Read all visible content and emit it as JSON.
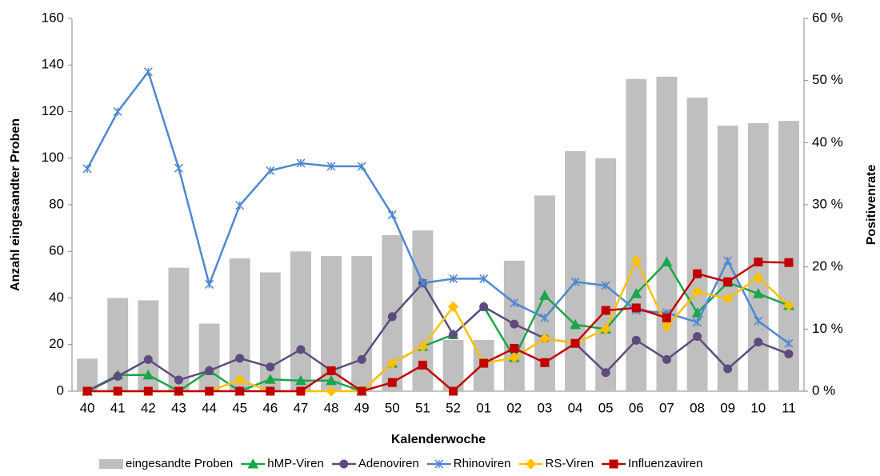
{
  "chart_data": {
    "type": "bar-line",
    "x_label": "Kalenderwoche",
    "y_label": "Anzahl eingesandter Proben",
    "y2_label": "Positivenrate",
    "categories": [
      "40",
      "41",
      "42",
      "43",
      "44",
      "45",
      "46",
      "47",
      "48",
      "49",
      "50",
      "51",
      "52",
      "01",
      "02",
      "03",
      "04",
      "05",
      "06",
      "07",
      "08",
      "09",
      "10",
      "11"
    ],
    "ylim": [
      0,
      160
    ],
    "yticks": [
      0,
      20,
      40,
      60,
      80,
      100,
      120,
      140,
      160
    ],
    "y2lim": [
      0,
      60
    ],
    "y2ticks": [
      {
        "value": 0,
        "label": "0 %"
      },
      {
        "value": 10,
        "label": "10 %"
      },
      {
        "value": 20,
        "label": "20 %"
      },
      {
        "value": 30,
        "label": "30 %"
      },
      {
        "value": 40,
        "label": "40 %"
      },
      {
        "value": 50,
        "label": "50 %"
      },
      {
        "value": 60,
        "label": "60 %"
      }
    ],
    "legend": "bottom",
    "series": [
      {
        "name": "eingesandte Proben",
        "kind": "bar",
        "axis": "y",
        "color": "#bfbfbf",
        "values": [
          14,
          40,
          39,
          53,
          29,
          57,
          51,
          60,
          58,
          58,
          67,
          69,
          22,
          22,
          56,
          84,
          103,
          100,
          134,
          135,
          126,
          114,
          115,
          116
        ]
      },
      {
        "name": "hMP-Viren",
        "kind": "line",
        "axis": "y2",
        "color": "#1aa64a",
        "marker": "triangle",
        "values": [
          0,
          2.6,
          2.6,
          0,
          3.3,
          0,
          1.9,
          1.7,
          1.7,
          0,
          4.5,
          7.2,
          9.1,
          13.6,
          5.4,
          15.4,
          10.7,
          10.0,
          15.7,
          20.8,
          12.6,
          17.5,
          15.7,
          13.8
        ]
      },
      {
        "name": "Adenoviren",
        "kind": "line",
        "axis": "y2",
        "color": "#5e4b7e",
        "marker": "circle",
        "values": [
          0,
          2.4,
          5.1,
          1.8,
          3.3,
          5.3,
          3.9,
          6.7,
          3.3,
          5.1,
          12.0,
          17.4,
          9.1,
          13.6,
          10.8,
          8.5,
          7.7,
          3.0,
          8.2,
          5.1,
          8.8,
          3.6,
          7.9,
          6.0
        ]
      },
      {
        "name": "Rhinoviren",
        "kind": "line",
        "axis": "y2",
        "color": "#4f88d0",
        "marker": "star",
        "values": [
          35.8,
          45.0,
          51.4,
          35.9,
          17.2,
          29.9,
          35.5,
          36.7,
          36.2,
          36.2,
          28.4,
          17.4,
          18.1,
          18.1,
          14.2,
          11.8,
          17.6,
          17.0,
          13.0,
          12.6,
          11.1,
          21.0,
          11.3,
          7.7
        ]
      },
      {
        "name": "RS-Viren",
        "kind": "line",
        "axis": "y2",
        "color": "#ffc000",
        "marker": "diamond",
        "values": [
          0,
          0,
          0,
          0,
          0,
          1.8,
          0,
          0,
          0,
          0,
          4.5,
          7.2,
          13.6,
          4.5,
          5.4,
          8.5,
          7.7,
          10.0,
          21.0,
          10.4,
          16.0,
          14.9,
          18.3,
          13.8
        ]
      },
      {
        "name": "Influenzaviren",
        "kind": "line",
        "axis": "y2",
        "color": "#c00000",
        "marker": "square",
        "values": [
          0,
          0,
          0,
          0,
          0,
          0,
          0,
          0,
          3.3,
          0,
          1.4,
          4.2,
          0,
          4.5,
          6.9,
          4.6,
          7.7,
          13.0,
          13.4,
          11.8,
          18.9,
          17.6,
          20.8,
          20.7
        ]
      }
    ]
  }
}
